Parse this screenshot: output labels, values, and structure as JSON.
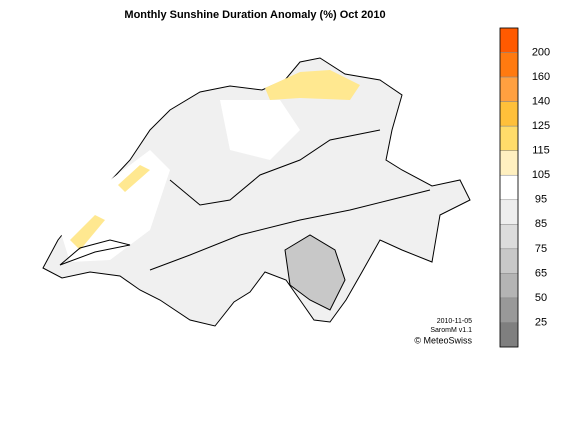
{
  "title": "Monthly Sunshine Duration Anomaly (%) Oct 2010",
  "legend": {
    "labels": [
      200,
      160,
      140,
      125,
      115,
      105,
      95,
      85,
      75,
      65,
      50,
      25
    ],
    "colors": [
      "#ff5a00",
      "#ff7a10",
      "#ffa040",
      "#ffc03a",
      "#ffdc6a",
      "#fff0c0",
      "#ffffff",
      "#eeeeee",
      "#dcdcdc",
      "#c8c8c8",
      "#b4b4b4",
      "#999999",
      "#7f7f7f"
    ]
  },
  "footer": {
    "date": "2010-11-05",
    "version": "SaromM v1.1",
    "credit": "© MeteoSwiss"
  }
}
